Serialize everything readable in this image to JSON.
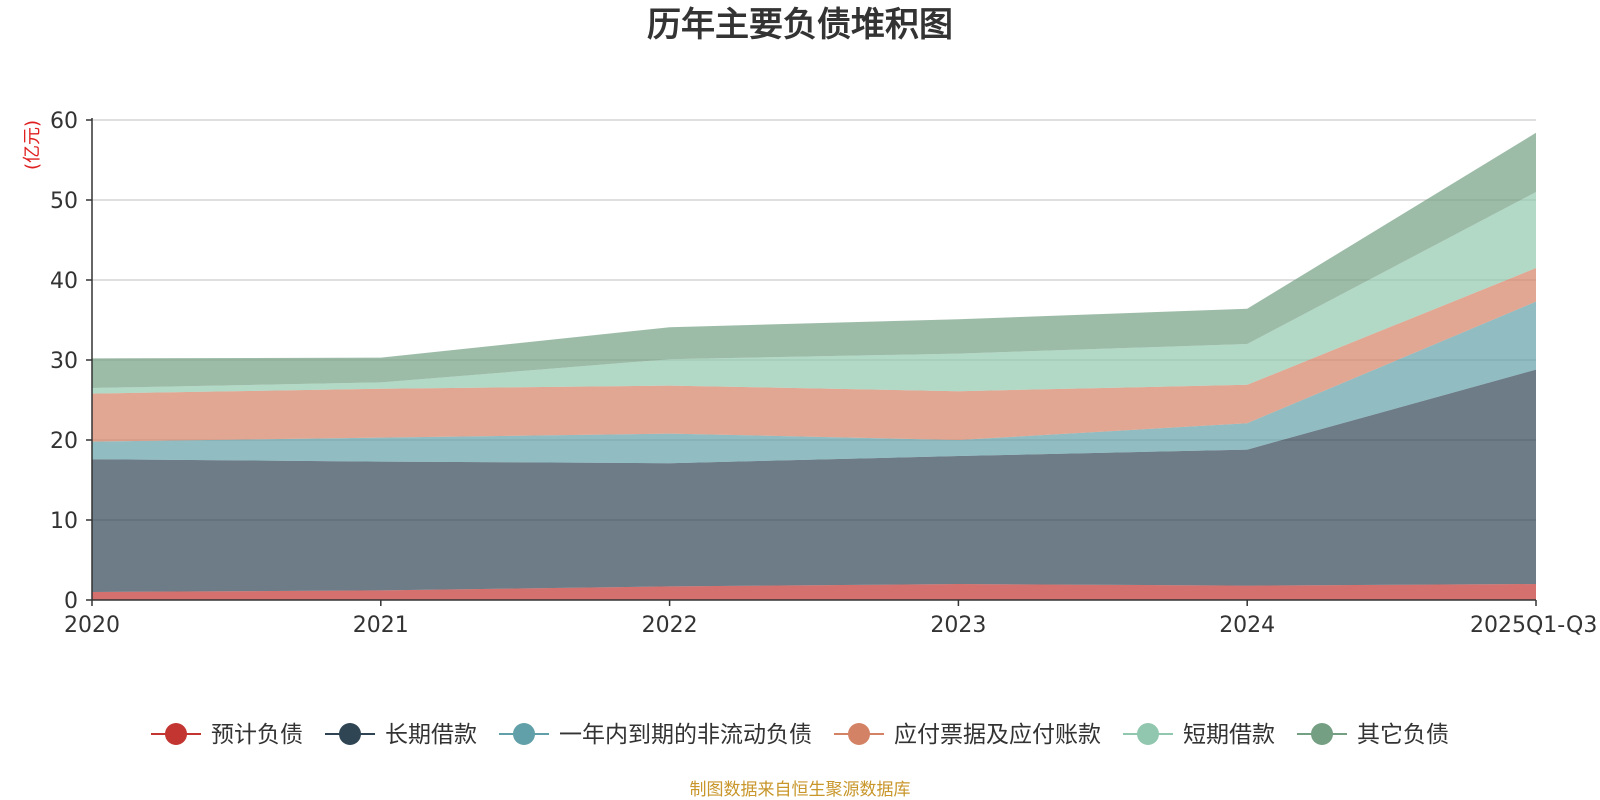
{
  "chart_data": {
    "type": "area",
    "stacked": true,
    "title": "历年主要负债堆积图",
    "unit_label": "(亿元)",
    "categories": [
      "2020",
      "2021",
      "2022",
      "2023",
      "2024",
      "2025Q1-Q3"
    ],
    "yticks": [
      0,
      10,
      20,
      30,
      40,
      50,
      60
    ],
    "ylim": [
      0,
      60
    ],
    "grid": true,
    "legend_position": "bottom",
    "series": [
      {
        "name": "预计负债",
        "color": "#c23531",
        "values": [
          1.0,
          1.2,
          1.7,
          2.0,
          1.8,
          2.0
        ]
      },
      {
        "name": "长期借款",
        "color": "#2f4554",
        "values": [
          16.6,
          16.1,
          15.4,
          16.0,
          17.0,
          26.8
        ]
      },
      {
        "name": "一年内到期的非流动负债",
        "color": "#61a0a8",
        "values": [
          2.2,
          3.0,
          3.7,
          2.0,
          3.3,
          8.5
        ]
      },
      {
        "name": "应付票据及应付账款",
        "color": "#d48265",
        "values": [
          6.0,
          6.1,
          6.0,
          6.1,
          4.8,
          4.2
        ]
      },
      {
        "name": "短期借款",
        "color": "#91c7ae",
        "values": [
          0.7,
          0.8,
          3.3,
          4.7,
          5.1,
          9.5
        ]
      },
      {
        "name": "其它负债",
        "color": "#749f83",
        "values": [
          3.7,
          3.1,
          4.0,
          4.3,
          4.4,
          7.4
        ]
      }
    ],
    "source": "制图数据来自恒生聚源数据库"
  }
}
